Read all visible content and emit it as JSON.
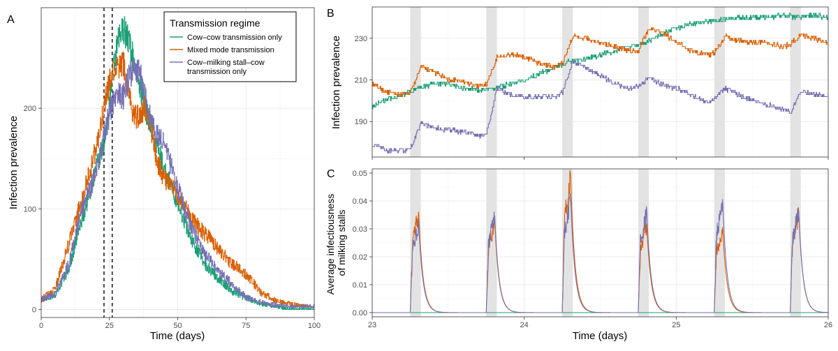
{
  "colors": {
    "cow_cow": "#1b9e77",
    "mixed": "#d95f02",
    "stall": "#7570b3",
    "shade": "#e3e3e3",
    "grid": "#ebebeb",
    "axis": "#4d4d4d"
  },
  "legend": {
    "title": "Transmission regime",
    "entries": [
      {
        "label_lines": [
          "Cow–cow transmission only"
        ],
        "color_key": "cow_cow"
      },
      {
        "label_lines": [
          "Mixed mode transmission"
        ],
        "color_key": "mixed"
      },
      {
        "label_lines": [
          "Cow–milking stall–cow",
          "transmission only"
        ],
        "color_key": "stall"
      }
    ]
  },
  "chart_data": [
    {
      "panel": "A",
      "type": "line",
      "xlabel": "Time (days)",
      "ylabel": "Infection prevalence",
      "xlim": [
        0,
        100
      ],
      "ylim": [
        -8,
        300
      ],
      "xticks": [
        0,
        25,
        50,
        75,
        100
      ],
      "yticks": [
        0,
        100,
        200
      ],
      "grid": true,
      "vlines": [
        {
          "x": 23,
          "style": "dashed"
        },
        {
          "x": 26,
          "style": "dashed"
        }
      ],
      "series": [
        {
          "name": "Cow–cow transmission only",
          "color_key": "cow_cow",
          "x": [
            0,
            5,
            10,
            15,
            20,
            22,
            24,
            26,
            28,
            30,
            32,
            34,
            36,
            38,
            40,
            42,
            45,
            50,
            55,
            60,
            65,
            70,
            75,
            80,
            85,
            90,
            95,
            100
          ],
          "y": [
            10,
            15,
            40,
            90,
            140,
            155,
            180,
            230,
            265,
            280,
            268,
            245,
            225,
            200,
            185,
            165,
            140,
            105,
            70,
            45,
            30,
            18,
            12,
            6,
            3,
            1,
            0,
            0
          ]
        },
        {
          "name": "Mixed mode transmission",
          "color_key": "mixed",
          "x": [
            0,
            5,
            10,
            15,
            20,
            22,
            24,
            26,
            28,
            30,
            32,
            34,
            36,
            38,
            40,
            42,
            45,
            50,
            55,
            60,
            65,
            70,
            75,
            80,
            85,
            90,
            95,
            100
          ],
          "y": [
            10,
            20,
            65,
            110,
            160,
            185,
            215,
            235,
            240,
            245,
            215,
            190,
            195,
            200,
            185,
            150,
            130,
            115,
            90,
            75,
            60,
            45,
            35,
            18,
            10,
            6,
            4,
            3
          ]
        },
        {
          "name": "Cow–milking stall–cow transmission only",
          "color_key": "stall",
          "x": [
            0,
            5,
            10,
            15,
            20,
            22,
            24,
            26,
            28,
            30,
            32,
            34,
            36,
            38,
            40,
            42,
            45,
            50,
            55,
            60,
            65,
            70,
            75,
            80,
            85,
            90,
            95,
            100
          ],
          "y": [
            10,
            15,
            45,
            100,
            135,
            160,
            185,
            205,
            215,
            210,
            230,
            240,
            235,
            215,
            190,
            175,
            165,
            120,
            80,
            55,
            38,
            25,
            12,
            8,
            5,
            3,
            3,
            3
          ]
        }
      ]
    },
    {
      "panel": "B",
      "type": "line",
      "xlabel": "",
      "ylabel": "Infection prevalence",
      "xlim": [
        23,
        26
      ],
      "ylim": [
        173,
        245
      ],
      "xticks": [
        23,
        24,
        25,
        26
      ],
      "yticks": [
        190,
        210,
        230
      ],
      "grid": true,
      "shaded_intervals": [
        [
          23.25,
          23.32
        ],
        [
          23.75,
          23.82
        ],
        [
          24.25,
          24.32
        ],
        [
          24.75,
          24.82
        ],
        [
          25.25,
          25.32
        ],
        [
          25.75,
          25.82
        ]
      ],
      "series": [
        {
          "name": "Cow–cow transmission only",
          "color_key": "cow_cow",
          "x": [
            23.0,
            23.1,
            23.2,
            23.3,
            23.4,
            23.5,
            23.6,
            23.7,
            23.8,
            23.9,
            24.0,
            24.1,
            24.2,
            24.3,
            24.4,
            24.5,
            24.6,
            24.7,
            24.8,
            24.9,
            25.0,
            25.1,
            25.2,
            25.3,
            25.4,
            25.5,
            25.6,
            25.7,
            25.8,
            25.9,
            26.0
          ],
          "y": [
            197,
            201,
            203,
            206,
            208,
            208,
            206,
            205,
            206,
            208,
            210,
            213,
            216,
            219,
            220,
            222,
            224,
            226,
            228,
            232,
            235,
            237,
            238,
            239,
            240,
            240,
            240,
            241,
            240,
            241,
            240
          ]
        },
        {
          "name": "Mixed mode transmission",
          "color_key": "mixed",
          "x": [
            23.0,
            23.1,
            23.2,
            23.25,
            23.32,
            23.4,
            23.5,
            23.6,
            23.7,
            23.75,
            23.82,
            23.9,
            24.0,
            24.1,
            24.2,
            24.25,
            24.32,
            24.4,
            24.5,
            24.6,
            24.7,
            24.75,
            24.82,
            24.9,
            25.0,
            25.1,
            25.2,
            25.25,
            25.32,
            25.4,
            25.5,
            25.6,
            25.7,
            25.75,
            25.82,
            25.9,
            26.0
          ],
          "y": [
            208,
            204,
            203,
            204,
            216,
            214,
            210,
            209,
            207,
            208,
            221,
            222,
            221,
            218,
            216,
            218,
            231,
            230,
            228,
            226,
            224,
            224,
            235,
            233,
            228,
            224,
            222,
            223,
            231,
            229,
            228,
            228,
            226,
            227,
            232,
            230,
            228
          ]
        },
        {
          "name": "Cow–milking stall–cow transmission only",
          "color_key": "stall",
          "x": [
            23.0,
            23.05,
            23.1,
            23.2,
            23.25,
            23.32,
            23.4,
            23.5,
            23.6,
            23.7,
            23.75,
            23.82,
            23.9,
            24.0,
            24.1,
            24.2,
            24.25,
            24.32,
            24.4,
            24.5,
            24.6,
            24.7,
            24.75,
            24.82,
            24.9,
            25.0,
            25.1,
            25.2,
            25.25,
            25.32,
            25.4,
            25.5,
            25.6,
            25.7,
            25.75,
            25.82,
            25.9,
            26.0
          ],
          "y": [
            179,
            178,
            176,
            176,
            177,
            189,
            187,
            186,
            185,
            183,
            184,
            206,
            203,
            202,
            202,
            202,
            204,
            219,
            216,
            212,
            208,
            206,
            207,
            211,
            208,
            206,
            203,
            199,
            201,
            206,
            203,
            200,
            198,
            196,
            194,
            205,
            203,
            202
          ]
        }
      ]
    },
    {
      "panel": "C",
      "type": "line",
      "xlabel": "Time (days)",
      "ylabel": "Average infectiousness of milking stalls",
      "ylabel_lines": [
        "Average infectiousness",
        "of milking stalls"
      ],
      "xlim": [
        23,
        26
      ],
      "ylim": [
        -0.0015,
        0.0515
      ],
      "xticks": [
        23,
        24,
        25,
        26
      ],
      "yticks": [
        0.0,
        0.01,
        0.02,
        0.03,
        0.04,
        0.05
      ],
      "ytick_labels": [
        "0.00",
        "0.01",
        "0.02",
        "0.03",
        "0.04",
        "0.05"
      ],
      "grid": true,
      "shaded_intervals": [
        [
          23.25,
          23.32
        ],
        [
          23.75,
          23.82
        ],
        [
          24.25,
          24.32
        ],
        [
          24.75,
          24.82
        ],
        [
          25.25,
          25.32
        ],
        [
          25.75,
          25.82
        ]
      ],
      "milking_starts": [
        23.25,
        23.75,
        24.25,
        24.75,
        25.25,
        25.75
      ],
      "series": [
        {
          "name": "Cow–cow transmission only",
          "color_key": "cow_cow",
          "flat_value": 0.0
        },
        {
          "name": "Mixed mode transmission",
          "color_key": "mixed",
          "peaks": [
            0.037,
            0.034,
            0.05,
            0.033,
            0.031,
            0.037
          ]
        },
        {
          "name": "Cow–milking stall–cow transmission only",
          "color_key": "stall",
          "peaks": [
            0.033,
            0.036,
            0.042,
            0.038,
            0.041,
            0.038
          ]
        }
      ]
    }
  ]
}
